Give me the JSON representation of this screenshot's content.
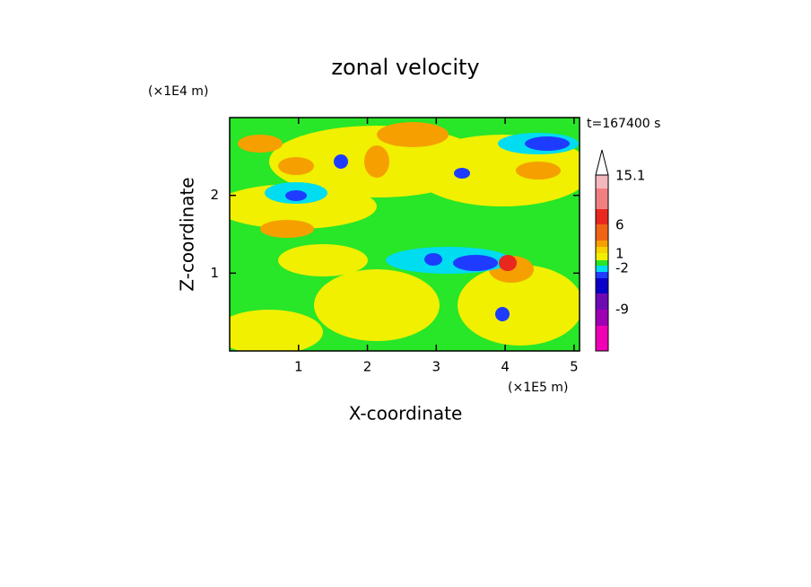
{
  "chart_data": {
    "type": "contour",
    "title": "zonal velocity",
    "x_label": "X-coordinate",
    "y_label": "Z-coordinate",
    "x_unit": "(×1E5 m)",
    "y_unit": "(×1E4 m)",
    "time_label": "t=167400 s",
    "xlim": [
      0,
      5.08
    ],
    "ylim": [
      0,
      3
    ],
    "xticks": [
      1,
      2,
      3,
      4,
      5
    ],
    "yticks": [
      1,
      2
    ],
    "colorbar": {
      "colors": [
        "#f4b8bc",
        "#f08080",
        "#e8281e",
        "#f06414",
        "#f5a000",
        "#f5d200",
        "#f0f000",
        "#28e628",
        "#00dcf0",
        "#1e3cff",
        "#0a00c8",
        "#6e0ab4",
        "#a000b4",
        "#f000b4"
      ],
      "ticks": [
        {
          "value": 15.1,
          "label": "15.1"
        },
        6,
        1,
        -2,
        -9
      ]
    }
  }
}
